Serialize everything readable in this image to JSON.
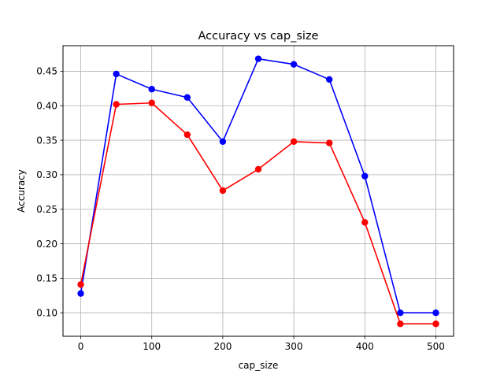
{
  "chart_data": {
    "type": "line",
    "title": "Accuracy vs cap_size",
    "xlabel": "cap_size",
    "ylabel": "Accuracy",
    "x": [
      0,
      50,
      100,
      150,
      200,
      250,
      300,
      350,
      400,
      450,
      500
    ],
    "xlim": [
      -25,
      525
    ],
    "ylim": [
      0.066,
      0.487
    ],
    "xticks": [
      0,
      100,
      200,
      300,
      400,
      500
    ],
    "xtick_labels": [
      "0",
      "100",
      "200",
      "300",
      "400",
      "500"
    ],
    "yticks": [
      0.1,
      0.15,
      0.2,
      0.25,
      0.3,
      0.35,
      0.4,
      0.45
    ],
    "ytick_labels": [
      "0.10",
      "0.15",
      "0.20",
      "0.25",
      "0.30",
      "0.35",
      "0.40",
      "0.45"
    ],
    "grid": true,
    "series": [
      {
        "color": "#0000ff",
        "values": [
          0.128,
          0.446,
          0.424,
          0.412,
          0.348,
          0.468,
          0.46,
          0.438,
          0.298,
          0.1,
          0.1
        ]
      },
      {
        "color": "#ff0000",
        "values": [
          0.141,
          0.402,
          0.404,
          0.358,
          0.277,
          0.308,
          0.348,
          0.346,
          0.231,
          0.084,
          0.084
        ]
      }
    ]
  }
}
